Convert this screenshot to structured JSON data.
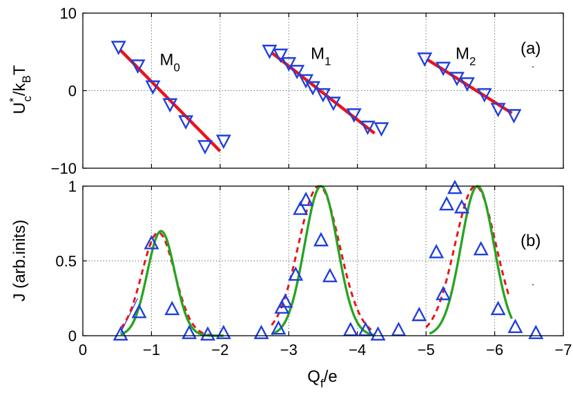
{
  "chart_data": [
    {
      "panel": "(a)",
      "type": "scatter",
      "ylabel_main": "U",
      "ylabel_sup": "*",
      "ylabel_sub": "c",
      "ylabel_mid": "/k",
      "ylabel_sub2": "B",
      "ylabel_tail": "T",
      "xlim": [
        0,
        -7
      ],
      "ylim": [
        -10,
        10
      ],
      "xticks": [
        0,
        -1,
        -2,
        -3,
        -4,
        -5,
        -6,
        -7
      ],
      "yticks": [
        -10,
        0,
        10
      ],
      "ytick_labels": [
        "−10",
        "0",
        "10"
      ],
      "grid": true,
      "colors": {
        "markers": "#1f3fdc",
        "fit": "#e8141b"
      },
      "annotations": [
        {
          "main": "M",
          "sub": "0",
          "x": -1.12,
          "y": 3.3
        },
        {
          "main": "M",
          "sub": "1",
          "x": -3.32,
          "y": 4.1
        },
        {
          "main": "M",
          "sub": "2",
          "x": -5.43,
          "y": 4.1
        }
      ],
      "series": [
        {
          "name": "M0 data",
          "marker": "triangle-down",
          "points": [
            [
              -0.52,
              5.6
            ],
            [
              -0.8,
              3.2
            ],
            [
              -1.02,
              0.5
            ],
            [
              -1.27,
              -1.8
            ],
            [
              -1.5,
              -4.0
            ],
            [
              -1.78,
              -7.2
            ],
            [
              -2.05,
              -6.5
            ]
          ]
        },
        {
          "name": "M1 data",
          "marker": "triangle-down",
          "points": [
            [
              -2.72,
              5.1
            ],
            [
              -2.88,
              4.6
            ],
            [
              -3.0,
              3.5
            ],
            [
              -3.12,
              2.5
            ],
            [
              -3.25,
              1.3
            ],
            [
              -3.35,
              0.4
            ],
            [
              -3.5,
              -0.5
            ],
            [
              -3.65,
              -1.6
            ],
            [
              -3.95,
              -3.1
            ],
            [
              -4.15,
              -4.7
            ],
            [
              -4.35,
              -4.9
            ]
          ]
        },
        {
          "name": "M2 data",
          "marker": "triangle-down",
          "points": [
            [
              -4.98,
              4.1
            ],
            [
              -5.25,
              2.9
            ],
            [
              -5.45,
              1.6
            ],
            [
              -5.6,
              0.9
            ],
            [
              -5.85,
              -0.5
            ],
            [
              -6.05,
              -2.4
            ],
            [
              -6.28,
              -3.2
            ]
          ]
        },
        {
          "name": "M0 fit",
          "type": "line",
          "points": [
            [
              -0.55,
              5.2
            ],
            [
              -2.0,
              -7.8
            ]
          ]
        },
        {
          "name": "M1 fit",
          "type": "line",
          "points": [
            [
              -2.75,
              4.9
            ],
            [
              -4.25,
              -5.5
            ]
          ]
        },
        {
          "name": "M2 fit",
          "type": "line",
          "points": [
            [
              -5.02,
              4.0
            ],
            [
              -6.25,
              -2.9
            ]
          ]
        }
      ]
    },
    {
      "panel": "(b)",
      "type": "scatter",
      "xlabel_main": "Q",
      "xlabel_sub": "f",
      "xlabel_tail": "/e",
      "ylabel": "J (arb.inits)",
      "xlim": [
        0,
        -7
      ],
      "ylim": [
        0,
        1
      ],
      "xticks": [
        0,
        -1,
        -2,
        -3,
        -4,
        -5,
        -6,
        -7
      ],
      "xtick_labels": [
        "0",
        "−1",
        "−2",
        "−3",
        "−4",
        "−5",
        "−6",
        "−7"
      ],
      "yticks": [
        0,
        0.5,
        1
      ],
      "ytick_labels": [
        "0",
        "0.5",
        "1"
      ],
      "grid": true,
      "colors": {
        "markers": "#1f3fdc",
        "solid": "#27a422",
        "dashed": "#e8141b"
      },
      "series": [
        {
          "name": "data",
          "marker": "triangle-up",
          "points": [
            [
              -0.55,
              0.01
            ],
            [
              -0.82,
              0.16
            ],
            [
              -1.0,
              0.62
            ],
            [
              -1.3,
              0.18
            ],
            [
              -1.55,
              0.02
            ],
            [
              -1.82,
              0.01
            ],
            [
              -2.05,
              0.02
            ],
            [
              -2.6,
              0.02
            ],
            [
              -2.85,
              0.05
            ],
            [
              -2.9,
              0.19
            ],
            [
              -2.95,
              0.23
            ],
            [
              -3.1,
              0.41
            ],
            [
              -3.17,
              0.85
            ],
            [
              -3.25,
              0.91
            ],
            [
              -3.47,
              0.64
            ],
            [
              -3.6,
              0.4
            ],
            [
              -3.9,
              0.04
            ],
            [
              -4.12,
              0.04
            ],
            [
              -4.3,
              0.01
            ],
            [
              -4.6,
              0.04
            ],
            [
              -4.9,
              0.14
            ],
            [
              -5.15,
              0.56
            ],
            [
              -5.25,
              0.28
            ],
            [
              -5.3,
              0.88
            ],
            [
              -5.42,
              0.99
            ],
            [
              -5.52,
              0.86
            ],
            [
              -5.8,
              0.58
            ],
            [
              -6.05,
              0.18
            ],
            [
              -6.3,
              0.06
            ],
            [
              -6.6,
              0.02
            ]
          ]
        },
        {
          "name": "fit solid",
          "line": "solid",
          "peaks": [
            {
              "x0": -1.14,
              "amp": 0.7,
              "sigma": 0.2,
              "range": [
                -0.55,
                -2.05
              ]
            },
            {
              "x0": -3.47,
              "amp": 1.0,
              "sigma": 0.24,
              "range": [
                -2.75,
                -4.25
              ]
            },
            {
              "x0": -5.75,
              "amp": 1.0,
              "sigma": 0.24,
              "range": [
                -5.05,
                -6.25
              ]
            }
          ]
        },
        {
          "name": "fit dashed",
          "line": "dashed",
          "peaks": [
            {
              "x0": -1.1,
              "amp": 0.69,
              "sigma": 0.24,
              "range": [
                -0.55,
                -2.0
              ]
            },
            {
              "x0": -3.44,
              "amp": 1.0,
              "sigma": 0.3,
              "range": [
                -2.75,
                -4.2
              ]
            },
            {
              "x0": -5.72,
              "amp": 1.0,
              "sigma": 0.3,
              "range": [
                -5.0,
                -6.2
              ]
            }
          ]
        },
        {
          "name": "edge stroke",
          "line": "thin",
          "points": [
            [
              -0.55,
              0.02
            ],
            [
              -0.8,
              0.25
            ]
          ]
        }
      ]
    }
  ]
}
